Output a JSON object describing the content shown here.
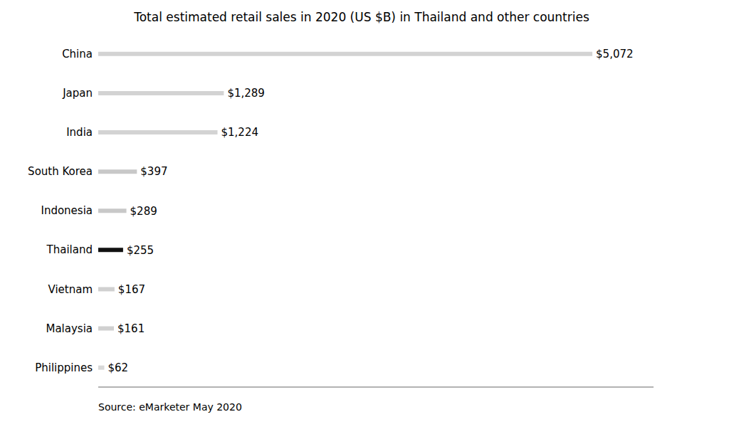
{
  "chart_data": {
    "type": "bar",
    "title": "Total estimated retail sales in 2020 (US $B) in Thailand and other countries",
    "annotations": [
      "Source: eMarketer May 2020"
    ],
    "orientation": "horizontal",
    "categories": [
      "China",
      "Japan",
      "India",
      "South Korea",
      "Indonesia",
      "Thailand",
      "Vietnam",
      "Malaysia",
      "Philippines"
    ],
    "values": [
      5072,
      1289,
      1224,
      397,
      289,
      255,
      167,
      161,
      62
    ],
    "value_labels": [
      "$5,072",
      "$1,289",
      "$1,224",
      "$397",
      "$289",
      "$255",
      "$167",
      "$161",
      "$62"
    ],
    "data_labels": true,
    "colors": [
      "#d3d3d3",
      "#d3d3d3",
      "#d3d3d3",
      "#c8c8c8",
      "#c8c8c8",
      "#111111",
      "#d0d0d0",
      "#d0d0d0",
      "#d8d8d8"
    ],
    "xlim": [
      0,
      5700
    ],
    "tick_labels": "y",
    "grid": false
  }
}
